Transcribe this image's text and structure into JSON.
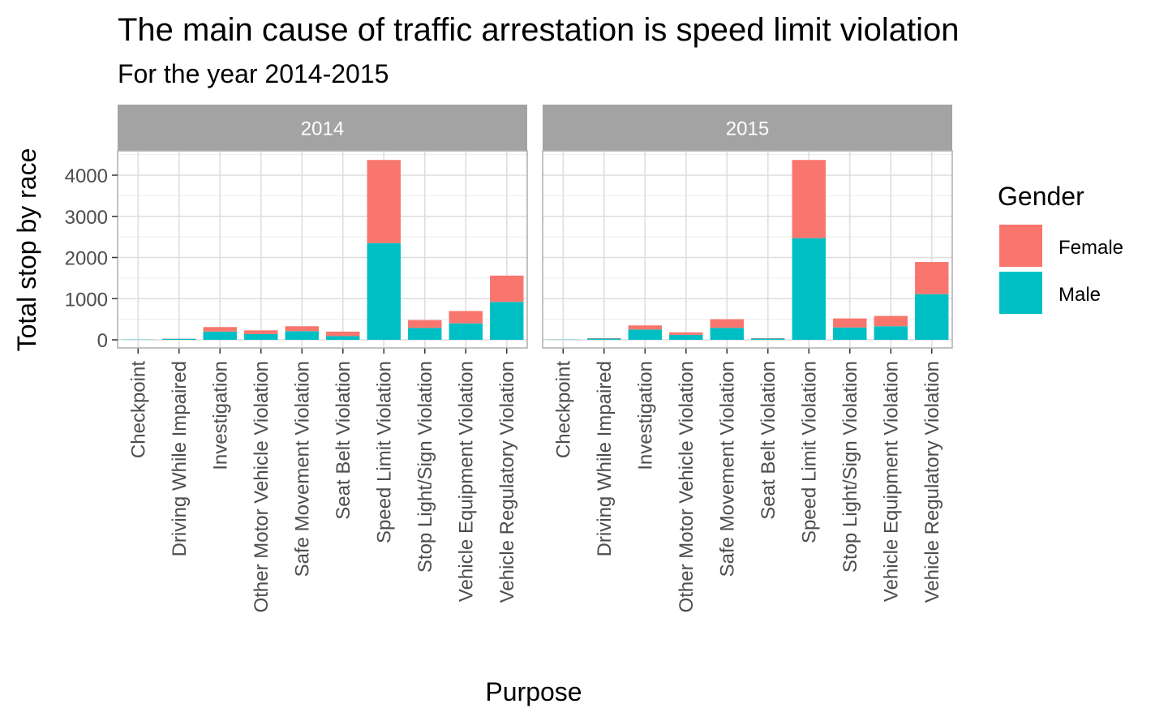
{
  "chart_data": {
    "type": "bar",
    "stacked": true,
    "title": "The main cause of traffic arrestation is speed limit violation",
    "subtitle": "For the year 2014-2015",
    "xlabel": "Purpose",
    "ylabel": "Total stop by race",
    "ylim": [
      0,
      4600
    ],
    "yticks": [
      0,
      1000,
      2000,
      3000,
      4000
    ],
    "grid": true,
    "legend": {
      "title": "Gender",
      "placement": "right",
      "entries": [
        "Female",
        "Male"
      ]
    },
    "colors": {
      "Female": "#F8766D",
      "Male": "#00BFC4",
      "strip": "#A3A3A3",
      "grid": "#DEDEDE",
      "panel_border": "#B3B3B3"
    },
    "categories": [
      "Checkpoint",
      "Driving While Impaired",
      "Investigation",
      "Other Motor Vehicle Violation",
      "Safe Movement Violation",
      "Seat Belt Violation",
      "Speed Limit Violation",
      "Stop Light/Sign Violation",
      "Vehicle Equipment Violation",
      "Vehicle Regulatory Violation"
    ],
    "facets": [
      {
        "label": "2014",
        "series": [
          {
            "name": "Male",
            "values": [
              5,
              25,
              200,
              140,
              210,
              90,
              2350,
              290,
              400,
              920
            ]
          },
          {
            "name": "Female",
            "values": [
              0,
              5,
              110,
              90,
              120,
              110,
              2020,
              190,
              300,
              640
            ]
          }
        ]
      },
      {
        "label": "2015",
        "series": [
          {
            "name": "Male",
            "values": [
              5,
              30,
              250,
              120,
              290,
              30,
              2470,
              300,
              330,
              1110
            ]
          },
          {
            "name": "Female",
            "values": [
              0,
              10,
              100,
              60,
              210,
              10,
              1900,
              220,
              250,
              780
            ]
          }
        ]
      }
    ]
  }
}
